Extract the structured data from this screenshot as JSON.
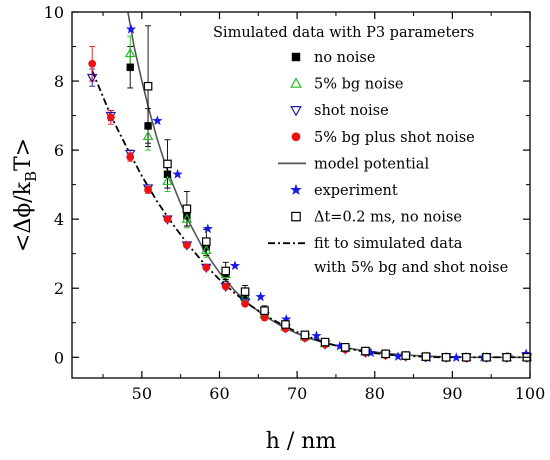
{
  "chart_data": {
    "type": "scatter",
    "xlabel": "h / nm",
    "ylabel": "<Δϕ/kBT>",
    "xlim": [
      41,
      100
    ],
    "ylim": [
      -0.6,
      10
    ],
    "xticks": [
      50,
      60,
      70,
      80,
      90,
      100
    ],
    "yticks": [
      0,
      2,
      4,
      6,
      8,
      10
    ],
    "grid": false,
    "legend_title": "Simulated data with P3 parameters",
    "legend_position": "top-right",
    "series": [
      {
        "name": "no noise",
        "marker": "filled-square",
        "color": "#000000",
        "x": [
          48.5,
          50.8,
          53.3,
          55.8,
          58.3,
          60.8,
          63.3,
          65.8,
          68.5,
          71.0,
          73.6,
          76.2,
          78.8,
          81.4,
          84.0,
          86.6,
          89.2,
          91.8,
          94.4,
          97.0,
          99.6
        ],
        "y": [
          8.4,
          6.7,
          5.3,
          4.1,
          3.2,
          2.4,
          1.8,
          1.3,
          0.9,
          0.62,
          0.42,
          0.28,
          0.18,
          0.1,
          0.05,
          0.02,
          0.0,
          0.0,
          0.0,
          0.0,
          0.0
        ],
        "err": [
          0.6,
          0.5,
          0.4,
          0.3,
          0.25,
          0.2,
          0.15,
          0.12,
          0.1,
          0.08,
          0.06,
          0.05,
          0.04,
          0.03,
          0.03,
          0.02,
          0.02,
          0.02,
          0.02,
          0.02,
          0.02
        ]
      },
      {
        "name": "5% bg noise",
        "marker": "open-triangle-up",
        "color": "#22bb22",
        "x": [
          48.5,
          50.8,
          53.3,
          55.8,
          58.3,
          60.8,
          63.3,
          65.8,
          68.5,
          71.0,
          73.6,
          76.2,
          78.8,
          81.4,
          84.0,
          86.6,
          89.2,
          91.8,
          94.4,
          97.0,
          99.6
        ],
        "y": [
          8.8,
          6.4,
          5.1,
          4.0,
          3.1,
          2.4,
          1.75,
          1.25,
          0.88,
          0.6,
          0.4,
          0.26,
          0.16,
          0.09,
          0.04,
          0.01,
          0.0,
          0.0,
          0.0,
          0.0,
          0.0
        ],
        "err": [
          0.5,
          0.4,
          0.3,
          0.25,
          0.2,
          0.15,
          0.12,
          0.1,
          0.08,
          0.06,
          0.05,
          0.04,
          0.03,
          0.03,
          0.02,
          0.02,
          0.02,
          0.02,
          0.02,
          0.02,
          0.02
        ]
      },
      {
        "name": "shot noise",
        "marker": "open-triangle-down",
        "color": "#1a1aaa",
        "x": [
          43.6,
          46.0,
          48.5,
          50.8,
          53.3,
          55.8,
          58.3,
          60.8,
          63.3,
          65.8,
          68.5,
          71.0,
          73.6,
          76.2,
          78.8,
          81.4,
          84.0,
          86.6,
          89.2,
          91.8,
          94.4,
          97.0,
          99.6
        ],
        "y": [
          8.1,
          7.0,
          5.9,
          4.9,
          4.0,
          3.25,
          2.6,
          2.05,
          1.6,
          1.2,
          0.85,
          0.58,
          0.38,
          0.24,
          0.14,
          0.07,
          0.03,
          0.01,
          0.0,
          0.0,
          0.0,
          0.0,
          0.0
        ],
        "err": [
          0.25,
          0.15,
          0.1,
          0.08,
          0.06,
          0.05,
          0.04,
          0.04,
          0.03,
          0.03,
          0.03,
          0.02,
          0.02,
          0.02,
          0.02,
          0.02,
          0.02,
          0.02,
          0.02,
          0.02,
          0.02,
          0.02,
          0.02
        ]
      },
      {
        "name": "5% bg plus shot noise",
        "marker": "filled-circle",
        "color": "#ee1111",
        "x": [
          43.6,
          46.0,
          48.5,
          50.8,
          53.3,
          55.8,
          58.3,
          60.8,
          63.3,
          65.8,
          68.5,
          71.0,
          73.6,
          76.2,
          78.8,
          81.4,
          84.0,
          86.6,
          89.2,
          91.8,
          94.4,
          97.0,
          99.6
        ],
        "y": [
          8.5,
          6.95,
          5.8,
          4.85,
          4.0,
          3.25,
          2.6,
          2.05,
          1.55,
          1.15,
          0.83,
          0.56,
          0.37,
          0.23,
          0.13,
          0.06,
          0.02,
          0.0,
          -0.02,
          -0.03,
          -0.02,
          -0.02,
          -0.02
        ],
        "err": [
          0.5,
          0.2,
          0.12,
          0.1,
          0.08,
          0.06,
          0.05,
          0.04,
          0.04,
          0.03,
          0.03,
          0.02,
          0.02,
          0.02,
          0.02,
          0.02,
          0.02,
          0.02,
          0.02,
          0.02,
          0.02,
          0.02,
          0.02
        ]
      },
      {
        "name": "model potential",
        "marker": "solid-line",
        "color": "#555555",
        "x": [
          48.2,
          49,
          50,
          51,
          52,
          53,
          54,
          55,
          56,
          58,
          60,
          62,
          64,
          66,
          68,
          70,
          72,
          74,
          76,
          78,
          80,
          82,
          84,
          86,
          88,
          90,
          92,
          94,
          96,
          98,
          100
        ],
        "y": [
          10.0,
          9.0,
          8.0,
          7.1,
          6.3,
          5.6,
          5.0,
          4.45,
          3.95,
          3.1,
          2.45,
          1.92,
          1.5,
          1.17,
          0.9,
          0.69,
          0.52,
          0.39,
          0.29,
          0.21,
          0.15,
          0.1,
          0.07,
          0.04,
          0.02,
          0.01,
          0.0,
          0.0,
          0.0,
          0.0,
          0.0
        ]
      },
      {
        "name": "experiment",
        "marker": "filled-star",
        "color": "#1a1ae6",
        "x": [
          48.6,
          52.0,
          54.6,
          58.5,
          62.0,
          65.3,
          68.6,
          72.5,
          75.5,
          79.5,
          83.0,
          86.8,
          90.5,
          94.0,
          97.2,
          99.5
        ],
        "y": [
          9.5,
          6.85,
          5.3,
          3.72,
          2.65,
          1.75,
          1.1,
          0.62,
          0.32,
          0.13,
          0.02,
          -0.02,
          -0.01,
          0.0,
          0.01,
          0.1
        ]
      },
      {
        "name": "Δt=0.2 ms, no noise",
        "marker": "open-square",
        "color": "#000000",
        "x": [
          50.8,
          53.3,
          55.8,
          58.3,
          60.8,
          63.3,
          65.8,
          68.5,
          71.0,
          73.6,
          76.2,
          78.8,
          81.4,
          84.0,
          86.6,
          89.2,
          91.8,
          94.4,
          97.0,
          99.6
        ],
        "y": [
          7.85,
          5.6,
          4.3,
          3.35,
          2.5,
          1.9,
          1.35,
          0.95,
          0.65,
          0.44,
          0.29,
          0.18,
          0.1,
          0.05,
          0.02,
          0.0,
          0.0,
          0.0,
          0.0,
          0.0
        ],
        "err": [
          1.75,
          0.7,
          0.5,
          0.35,
          0.25,
          0.18,
          0.14,
          0.1,
          0.08,
          0.06,
          0.05,
          0.04,
          0.03,
          0.03,
          0.02,
          0.02,
          0.02,
          0.02,
          0.02,
          0.02
        ]
      },
      {
        "name": "fit to simulated data with 5% bg and shot noise",
        "name_lines": [
          "fit to simulated data",
          "with 5% bg and shot noise"
        ],
        "marker": "dash-dot-line",
        "color": "#000000",
        "x": [
          43.6,
          46,
          48,
          50,
          52,
          54,
          56,
          58,
          60,
          62,
          64,
          66,
          68,
          70,
          72,
          74,
          76,
          78,
          80,
          82,
          84,
          86,
          88,
          90,
          92,
          94,
          96,
          98,
          100
        ],
        "y": [
          8.3,
          7.0,
          6.1,
          5.25,
          4.5,
          3.85,
          3.25,
          2.72,
          2.25,
          1.85,
          1.5,
          1.2,
          0.95,
          0.73,
          0.55,
          0.4,
          0.28,
          0.19,
          0.12,
          0.07,
          0.04,
          0.02,
          0.0,
          0.0,
          0.0,
          0.0,
          0.0,
          0.0,
          0.0
        ]
      }
    ]
  }
}
